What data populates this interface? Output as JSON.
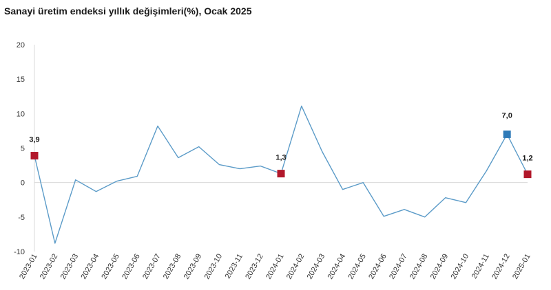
{
  "chart_data": {
    "type": "line",
    "title": "Sanayi üretim endeksi yıllık değişimleri(%), Ocak 2025",
    "xlabel": "",
    "ylabel": "",
    "ylim": [
      -10,
      20
    ],
    "yticks": [
      -10,
      -5,
      0,
      5,
      10,
      15,
      20
    ],
    "grid": false,
    "categories": [
      "2023-01",
      "2023-02",
      "2023-03",
      "2023-04",
      "2023-05",
      "2023-06",
      "2023-07",
      "2023-08",
      "2023-09",
      "2023-10",
      "2023-11",
      "2023-12",
      "2024-01",
      "2024-02",
      "2024-03",
      "2024-04",
      "2024-05",
      "2024-06",
      "2024-07",
      "2024-08",
      "2024-09",
      "2024-10",
      "2024-11",
      "2024-12",
      "2025-01"
    ],
    "series": [
      {
        "color": "#5b9bc8",
        "values": [
          3.9,
          -8.8,
          0.4,
          -1.3,
          0.2,
          0.9,
          8.2,
          3.6,
          5.2,
          2.6,
          2.0,
          2.4,
          1.3,
          11.1,
          4.5,
          -1.0,
          0.0,
          -4.9,
          -3.9,
          -5.0,
          -2.2,
          -2.9,
          1.7,
          7.0,
          1.2
        ]
      }
    ],
    "highlights": [
      {
        "index": 0,
        "label": "3,9",
        "color": "#b2182b"
      },
      {
        "index": 12,
        "label": "1,3",
        "color": "#b2182b"
      },
      {
        "index": 23,
        "label": "7,0",
        "color": "#2e7ab8"
      },
      {
        "index": 24,
        "label": "1,2",
        "color": "#b2182b"
      }
    ]
  }
}
